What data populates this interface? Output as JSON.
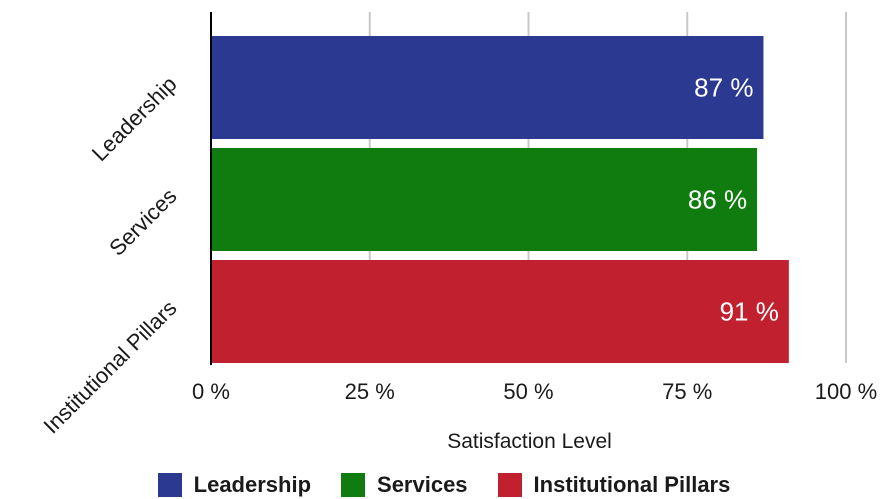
{
  "chart_data": {
    "type": "bar",
    "orientation": "horizontal",
    "categories": [
      "Leadership",
      "Services",
      "Institutional Pillars"
    ],
    "values": [
      87,
      86,
      91
    ],
    "data_labels": [
      "87 %",
      "86 %",
      "91 %"
    ],
    "colors": [
      "#2b3990",
      "#107c10",
      "#c1212f"
    ],
    "xlabel": "Satisfaction Level",
    "ylabel": "",
    "title": "",
    "xlim": [
      0,
      100
    ],
    "xticks": [
      0,
      25,
      50,
      75,
      100
    ],
    "xtick_labels": [
      "0 %",
      "25 %",
      "50 %",
      "75 %",
      "100 %"
    ],
    "grid": true,
    "legend_position": "bottom",
    "legend": [
      {
        "label": "Leadership",
        "color": "#2b3990"
      },
      {
        "label": "Services",
        "color": "#107c10"
      },
      {
        "label": "Institutional Pillars",
        "color": "#c1212f"
      }
    ]
  }
}
